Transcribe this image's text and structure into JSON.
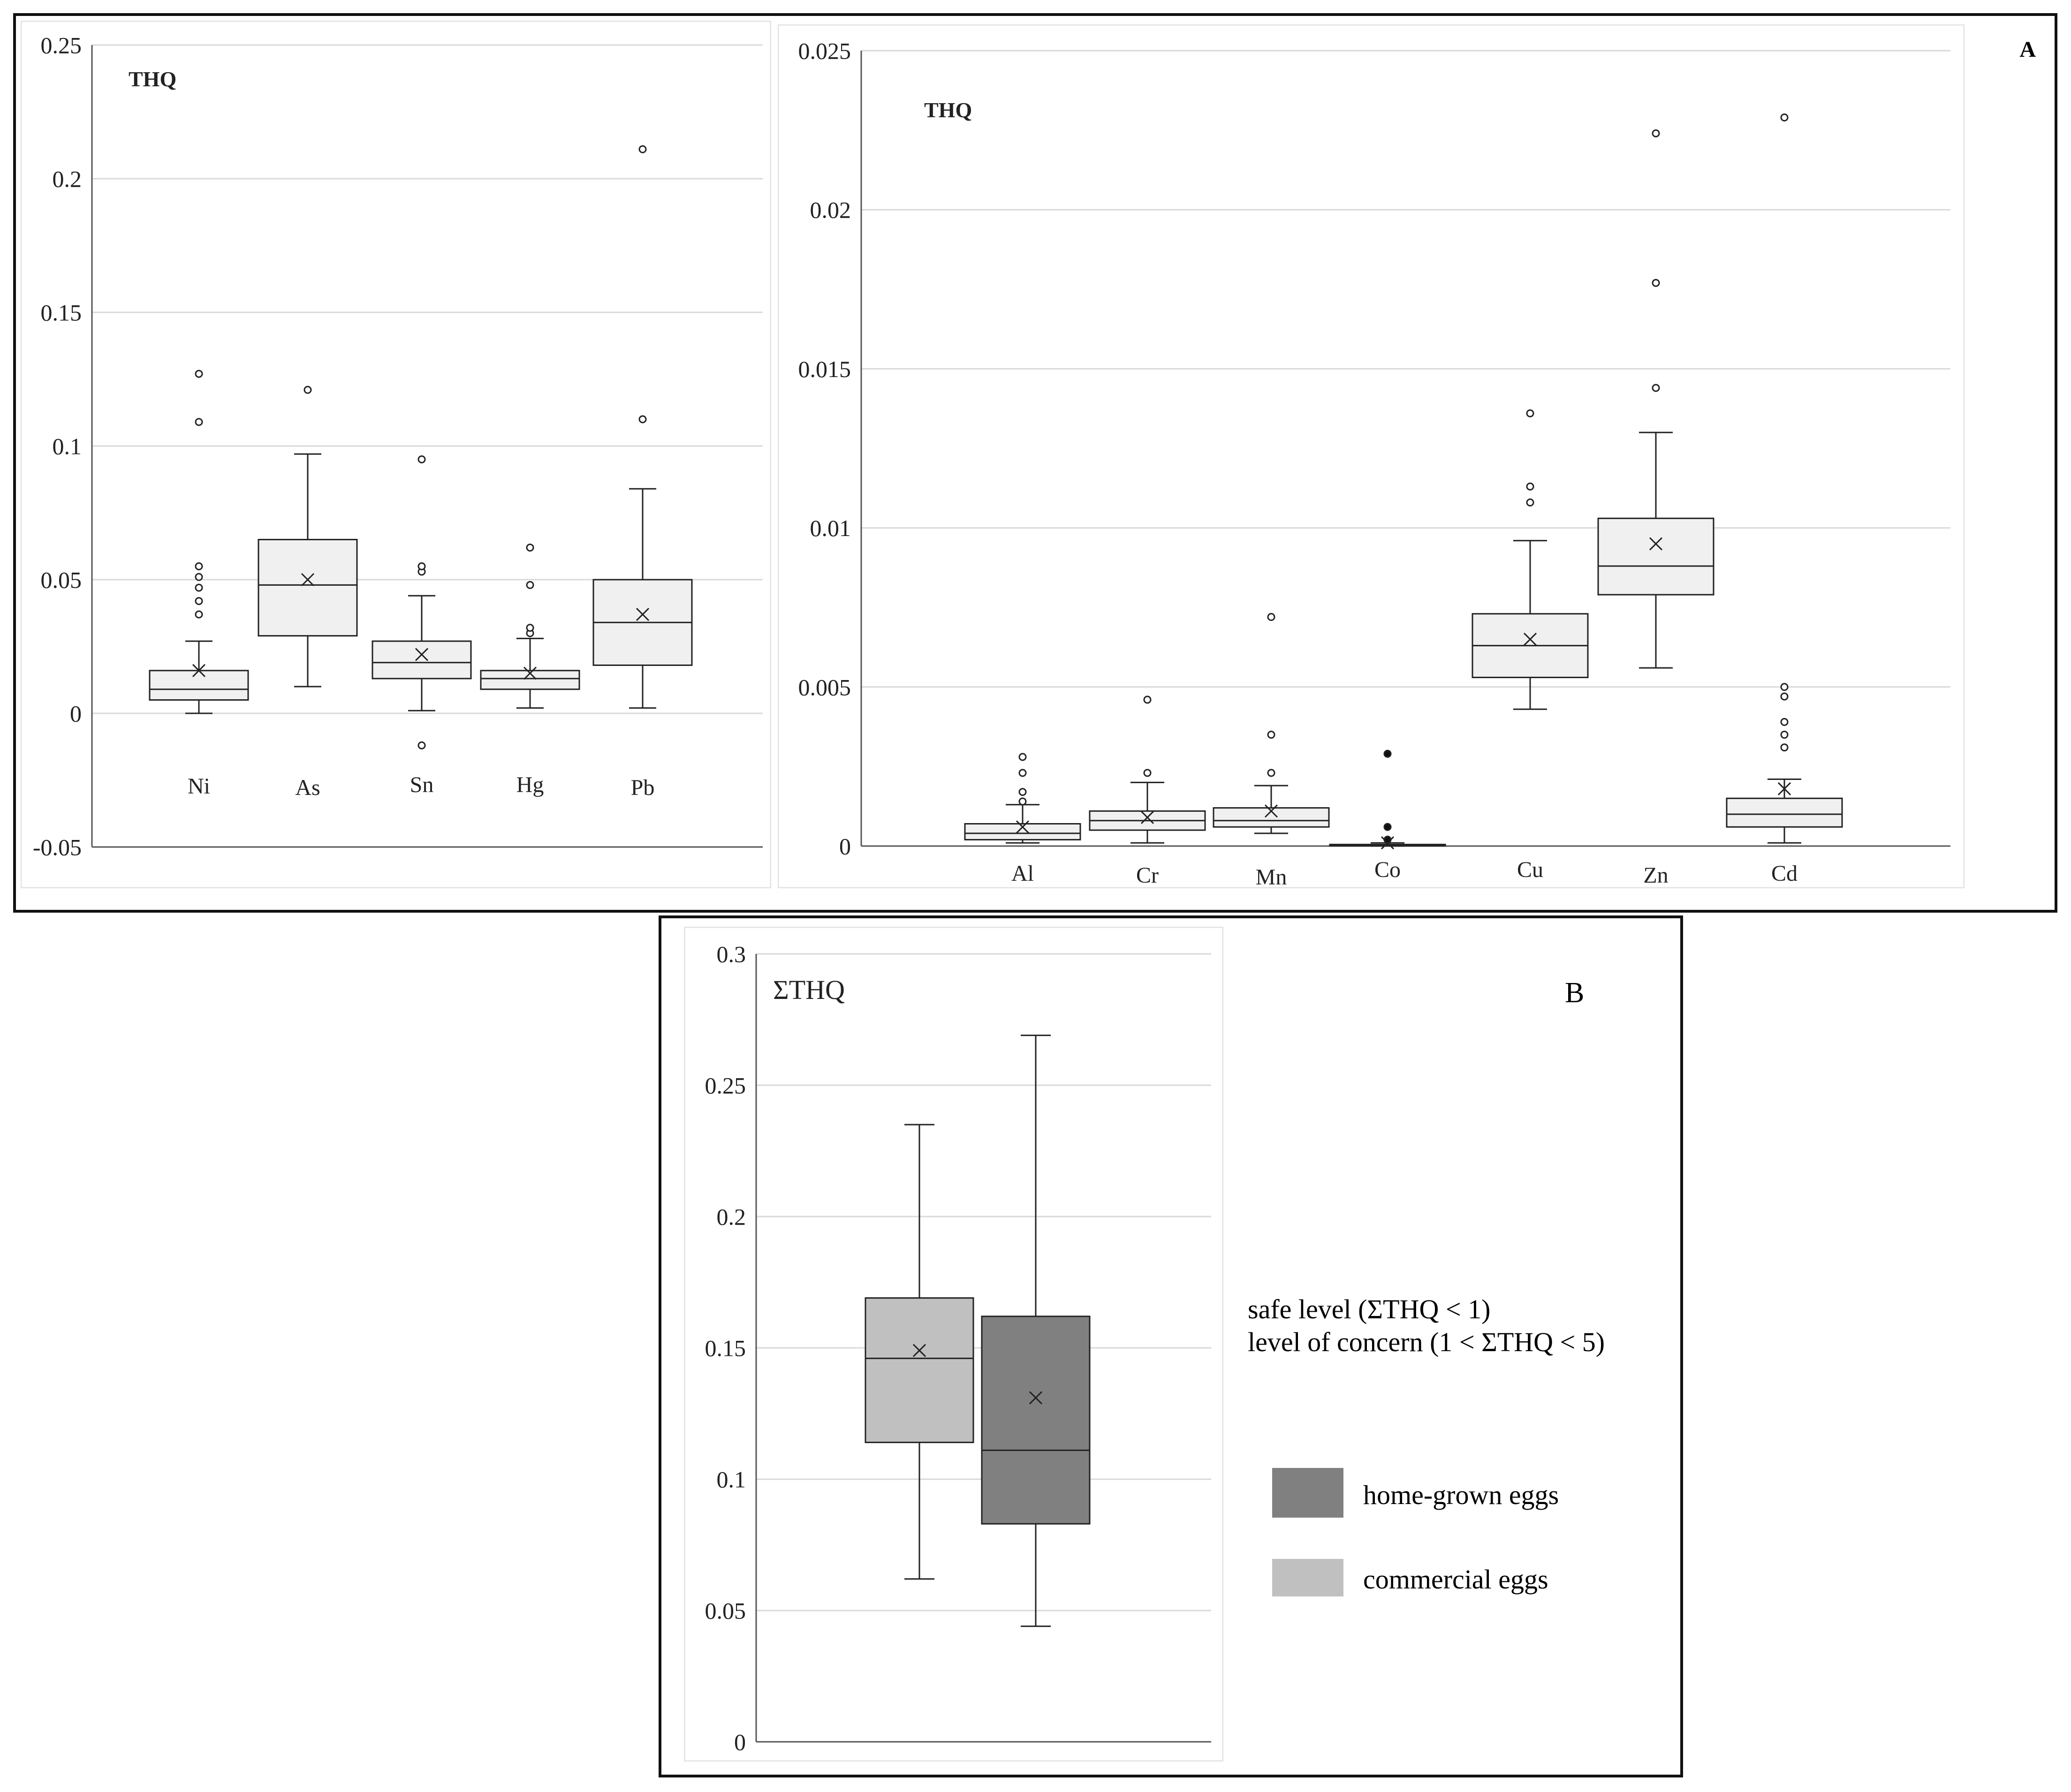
{
  "figure_A": {
    "panel_letter": "A"
  },
  "figure_B": {
    "panel_letter": "B",
    "notes": [
      "safe level (ΣTHQ < 1)",
      "level of concern (1 < ΣTHQ < 5)"
    ]
  },
  "colors": {
    "box_fill": "#f0f0f0",
    "home_grown": "#808080",
    "commercial": "#c0c0c0",
    "grid": "#d9d9d9",
    "axis": "#555555"
  },
  "chart_data": [
    {
      "id": "A1",
      "type": "box",
      "ylabel_inside": "THQ",
      "ylim": [
        -0.05,
        0.25
      ],
      "yticks": [
        -0.05,
        0,
        0.05,
        0.1,
        0.15,
        0.2,
        0.25
      ],
      "ytick_labels": [
        "-0.05",
        "0",
        "0.05",
        "0.1",
        "0.15",
        "0.2",
        "0.25"
      ],
      "series": [
        {
          "name": "Ni",
          "min": 0.0,
          "q1": 0.005,
          "median": 0.009,
          "q3": 0.016,
          "max": 0.027,
          "mean": 0.016,
          "outliers": [
            0.037,
            0.042,
            0.047,
            0.051,
            0.055,
            0.109,
            0.127
          ]
        },
        {
          "name": "As",
          "min": 0.01,
          "q1": 0.029,
          "median": 0.048,
          "q3": 0.065,
          "max": 0.097,
          "mean": 0.05,
          "outliers": [
            0.121
          ]
        },
        {
          "name": "Sn",
          "min": 0.001,
          "q1": 0.013,
          "median": 0.019,
          "q3": 0.027,
          "max": 0.044,
          "mean": 0.022,
          "outliers": [
            -0.012,
            0.053,
            0.055,
            0.095
          ]
        },
        {
          "name": "Hg",
          "min": 0.002,
          "q1": 0.009,
          "median": 0.013,
          "q3": 0.016,
          "max": 0.028,
          "mean": 0.015,
          "outliers": [
            0.03,
            0.032,
            0.048,
            0.062
          ]
        },
        {
          "name": "Pb",
          "min": 0.002,
          "q1": 0.018,
          "median": 0.034,
          "q3": 0.05,
          "max": 0.084,
          "mean": 0.037,
          "outliers": [
            0.11,
            0.211
          ]
        }
      ]
    },
    {
      "id": "A2",
      "type": "box",
      "ylabel_inside": "THQ",
      "ylim": [
        0,
        0.025
      ],
      "yticks": [
        0,
        0.005,
        0.01,
        0.015,
        0.02,
        0.025
      ],
      "ytick_labels": [
        "0",
        "0.005",
        "0.01",
        "0.015",
        "0.02",
        "0.025"
      ],
      "series": [
        {
          "name": "Al",
          "min": 0.0001,
          "q1": 0.0002,
          "median": 0.0004,
          "q3": 0.0007,
          "max": 0.0013,
          "mean": 0.0006,
          "outliers": [
            0.0014,
            0.0017,
            0.0023,
            0.0028
          ]
        },
        {
          "name": "Cr",
          "min": 0.0001,
          "q1": 0.0005,
          "median": 0.0008,
          "q3": 0.0011,
          "max": 0.002,
          "mean": 0.0009,
          "outliers": [
            0.0023,
            0.0046
          ]
        },
        {
          "name": "Mn",
          "min": 0.0004,
          "q1": 0.0006,
          "median": 0.0008,
          "q3": 0.0012,
          "max": 0.0019,
          "mean": 0.0011,
          "outliers": [
            0.0023,
            0.0035,
            0.0072
          ]
        },
        {
          "name": "Co",
          "min": 0.0,
          "q1": 2e-05,
          "median": 3e-05,
          "q3": 5e-05,
          "max": 0.0001,
          "mean": 0.0001,
          "outliers": [
            0.0002,
            0.0006,
            0.0029
          ]
        },
        {
          "name": "Cu",
          "min": 0.0043,
          "q1": 0.0053,
          "median": 0.0063,
          "q3": 0.0073,
          "max": 0.0096,
          "mean": 0.0065,
          "outliers": [
            0.0108,
            0.0113,
            0.0136
          ]
        },
        {
          "name": "Zn",
          "min": 0.0056,
          "q1": 0.0079,
          "median": 0.0088,
          "q3": 0.0103,
          "max": 0.013,
          "mean": 0.0095,
          "outliers": [
            0.0144,
            0.0177,
            0.0224
          ]
        },
        {
          "name": "Cd",
          "min": 0.0001,
          "q1": 0.0006,
          "median": 0.001,
          "q3": 0.0015,
          "max": 0.0021,
          "mean": 0.0018,
          "outliers": [
            0.0031,
            0.0035,
            0.0039,
            0.0047,
            0.005,
            0.0229
          ]
        }
      ]
    },
    {
      "id": "B",
      "type": "box",
      "ylabel_inside": "ΣTHQ",
      "ylim": [
        0,
        0.3
      ],
      "yticks": [
        0,
        0.05,
        0.1,
        0.15,
        0.2,
        0.25,
        0.3
      ],
      "ytick_labels": [
        "0",
        "0.05",
        "0.1",
        "0.15",
        "0.2",
        "0.25",
        "0.3"
      ],
      "series": [
        {
          "name": "commercial eggs",
          "color_key": "commercial",
          "min": 0.062,
          "q1": 0.114,
          "median": 0.146,
          "q3": 0.169,
          "max": 0.235,
          "mean": 0.149,
          "outliers": []
        },
        {
          "name": "home-grown eggs",
          "color_key": "home_grown",
          "min": 0.044,
          "q1": 0.083,
          "median": 0.111,
          "q3": 0.162,
          "max": 0.269,
          "mean": 0.131,
          "outliers": []
        }
      ],
      "legend": [
        {
          "label": "home-grown eggs",
          "color_key": "home_grown"
        },
        {
          "label": "commercial eggs",
          "color_key": "commercial"
        }
      ]
    }
  ]
}
